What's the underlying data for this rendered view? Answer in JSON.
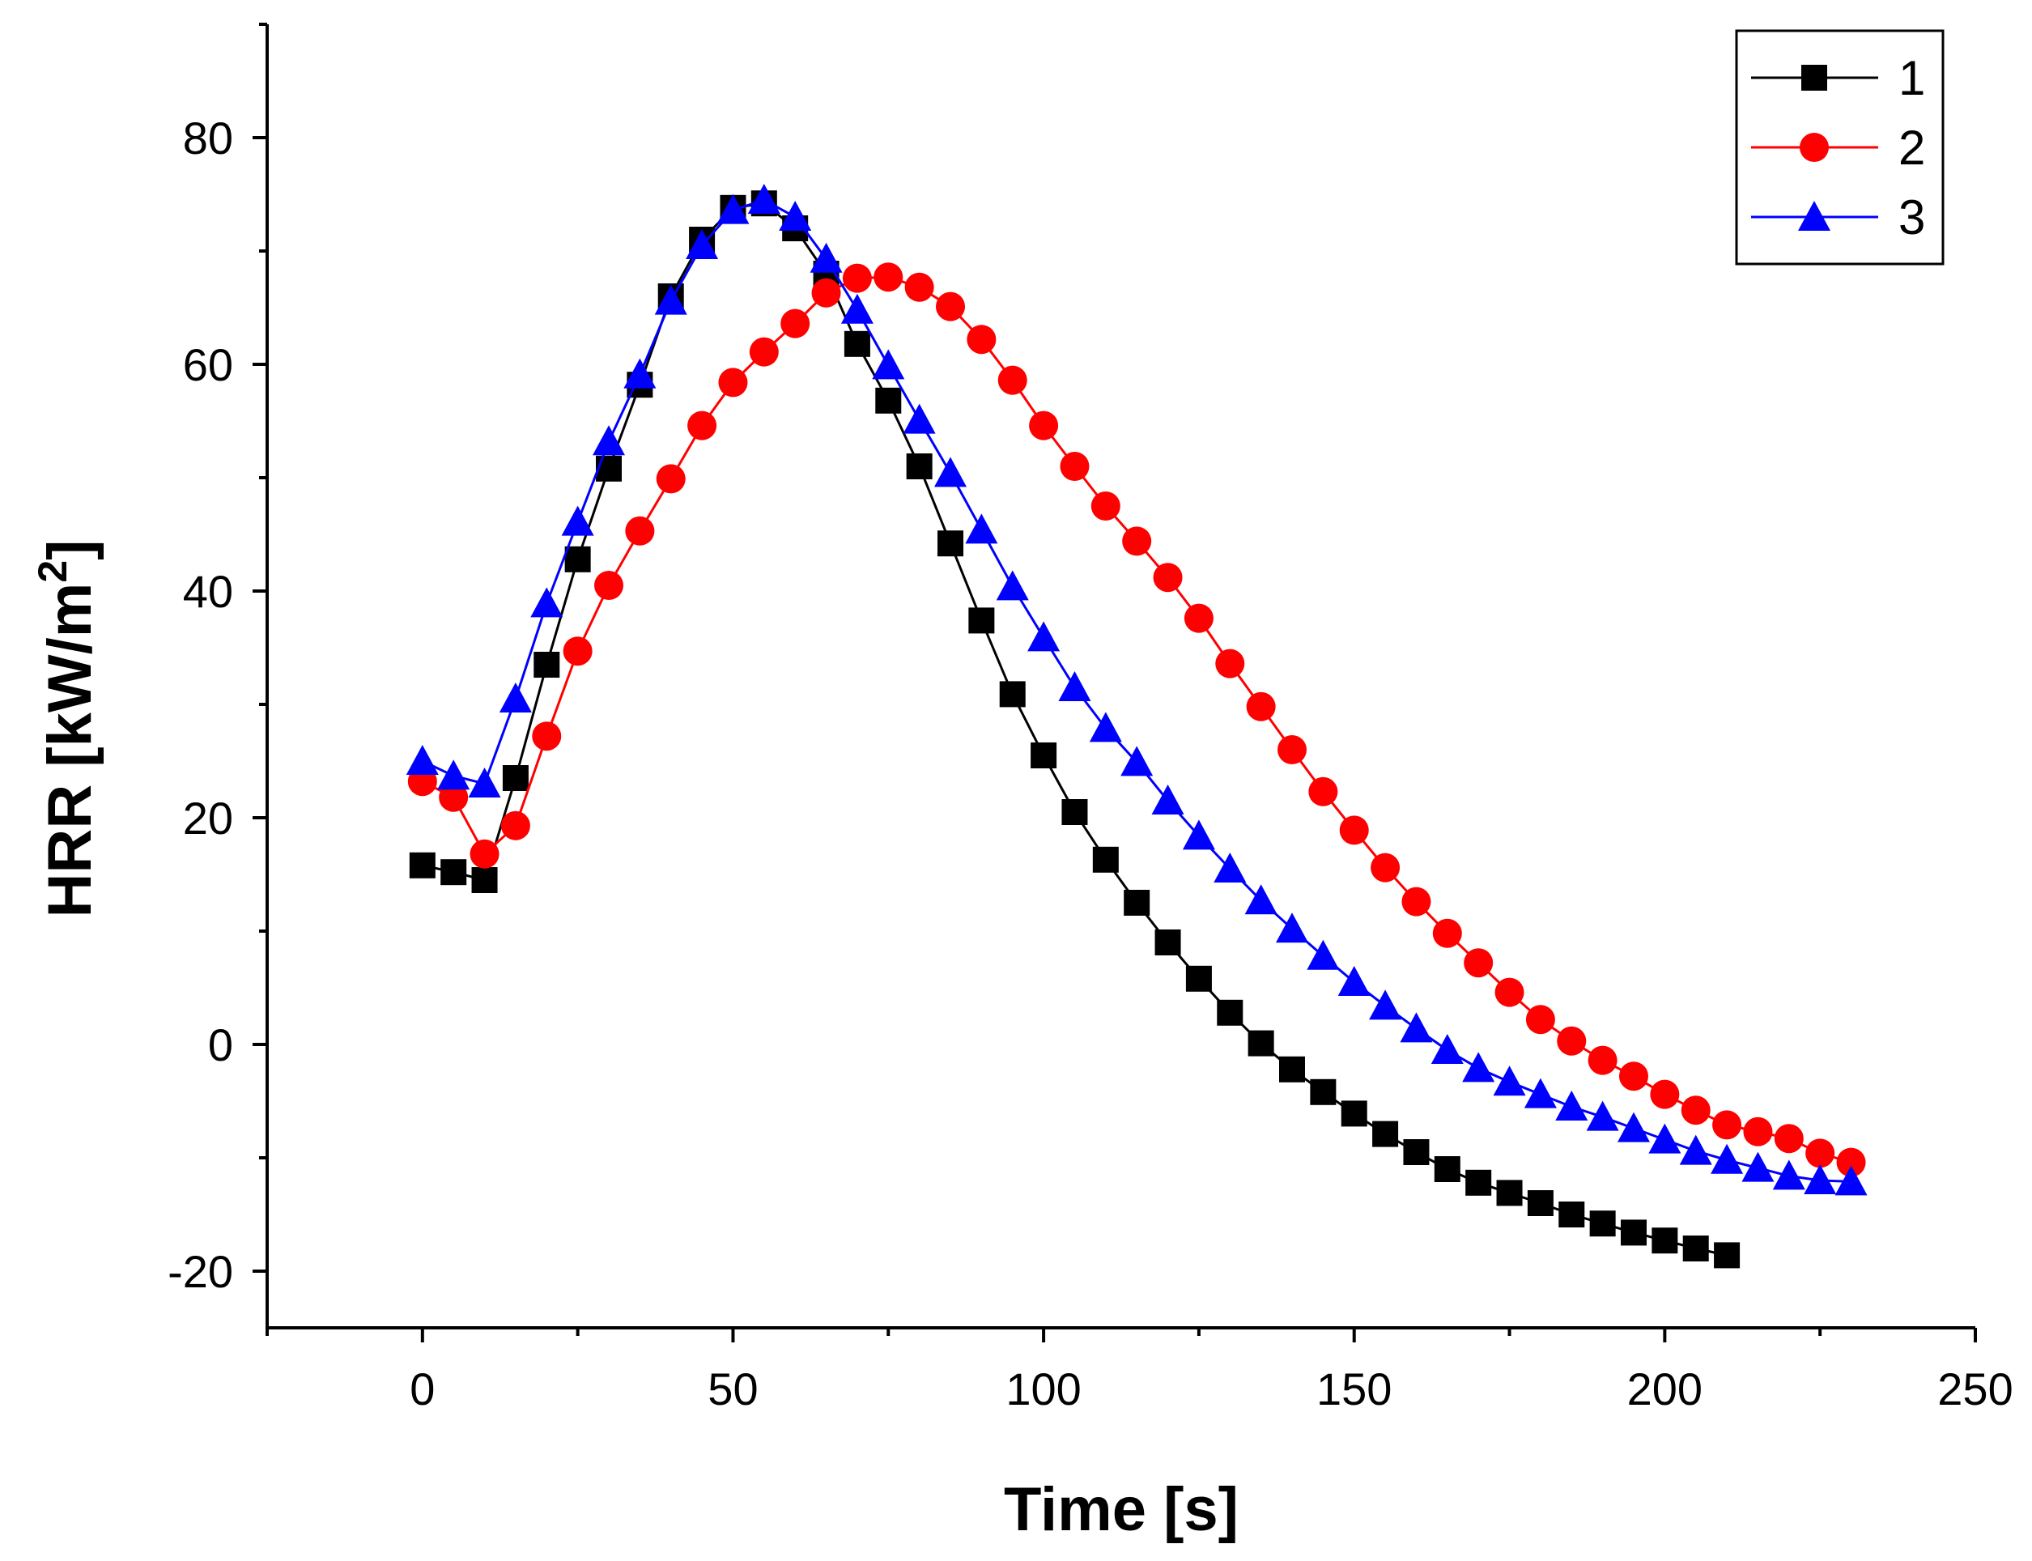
{
  "chart_data": {
    "type": "line",
    "title": "",
    "xlabel": "Time [s]",
    "ylabel_main": "HRR [kW/m",
    "ylabel_sup": "2",
    "ylabel_close": "]",
    "xlim": [
      -25,
      250
    ],
    "ylim": [
      -25,
      90
    ],
    "xticks": [
      0,
      50,
      100,
      150,
      200,
      250
    ],
    "yticks": [
      -20,
      0,
      20,
      40,
      60,
      80
    ],
    "grid": false,
    "legend_position": "top-right",
    "series": [
      {
        "name": "1",
        "color": "#000000",
        "marker": "square",
        "x": [
          0,
          5,
          10,
          15,
          20,
          25,
          30,
          35,
          40,
          45,
          50,
          55,
          60,
          65,
          70,
          75,
          80,
          85,
          90,
          95,
          100,
          105,
          110,
          115,
          120,
          125,
          130,
          135,
          140,
          145,
          150,
          155,
          160,
          165,
          170,
          175,
          180,
          185,
          190,
          195,
          200,
          205,
          210
        ],
        "values": [
          15.8,
          15.2,
          14.5,
          23.5,
          33.5,
          42.8,
          50.8,
          58.2,
          66,
          71,
          73.8,
          74.2,
          72,
          68,
          61.8,
          56.8,
          51,
          44.2,
          37.4,
          30.9,
          25.5,
          20.5,
          16.3,
          12.5,
          9,
          5.8,
          2.8,
          0.1,
          -2.2,
          -4.2,
          -6.1,
          -7.9,
          -9.5,
          -11,
          -12.2,
          -13.1,
          -14,
          -15,
          -15.8,
          -16.6,
          -17.3,
          -18,
          -18.6
        ]
      },
      {
        "name": "2",
        "color": "#ff0000",
        "marker": "circle",
        "x": [
          0,
          5,
          10,
          15,
          20,
          25,
          30,
          35,
          40,
          45,
          50,
          55,
          60,
          65,
          70,
          75,
          80,
          85,
          90,
          95,
          100,
          105,
          110,
          115,
          120,
          125,
          130,
          135,
          140,
          145,
          150,
          155,
          160,
          165,
          170,
          175,
          180,
          185,
          190,
          195,
          200,
          205,
          210,
          215,
          220,
          225,
          230
        ],
        "values": [
          23.2,
          21.8,
          16.8,
          19.3,
          27.2,
          34.7,
          40.5,
          45.3,
          49.9,
          54.6,
          58.4,
          61.1,
          63.6,
          66.3,
          67.6,
          67.7,
          66.8,
          65.1,
          62.2,
          58.6,
          54.6,
          51,
          47.5,
          44.4,
          41.2,
          37.6,
          33.6,
          29.8,
          26,
          22.3,
          18.9,
          15.6,
          12.6,
          9.8,
          7.2,
          4.6,
          2.2,
          0.3,
          -1.4,
          -2.8,
          -4.4,
          -5.8,
          -7.1,
          -7.7,
          -8.3,
          -9.6,
          -10.4
        ]
      },
      {
        "name": "3",
        "color": "#0000ff",
        "marker": "triangle",
        "x": [
          0,
          5,
          10,
          15,
          20,
          25,
          30,
          35,
          40,
          45,
          50,
          55,
          60,
          65,
          70,
          75,
          80,
          85,
          90,
          95,
          100,
          105,
          110,
          115,
          120,
          125,
          130,
          135,
          140,
          145,
          150,
          155,
          160,
          165,
          170,
          175,
          180,
          185,
          190,
          195,
          200,
          205,
          210,
          215,
          220,
          225,
          230
        ],
        "values": [
          25,
          23.7,
          23,
          30.5,
          38.9,
          46.1,
          53.2,
          59.1,
          65.6,
          70.5,
          73.6,
          74.5,
          73,
          69.3,
          64.8,
          59.9,
          55.1,
          50.4,
          45.4,
          40.4,
          35.9,
          31.5,
          27.9,
          24.9,
          21.5,
          18.4,
          15.5,
          12.7,
          10.2,
          7.8,
          5.5,
          3.4,
          1.4,
          -0.5,
          -2.1,
          -3.3,
          -4.4,
          -5.5,
          -6.4,
          -7.4,
          -8.4,
          -9.4,
          -10.2,
          -10.9,
          -11.6,
          -12,
          -12.1
        ]
      }
    ]
  }
}
